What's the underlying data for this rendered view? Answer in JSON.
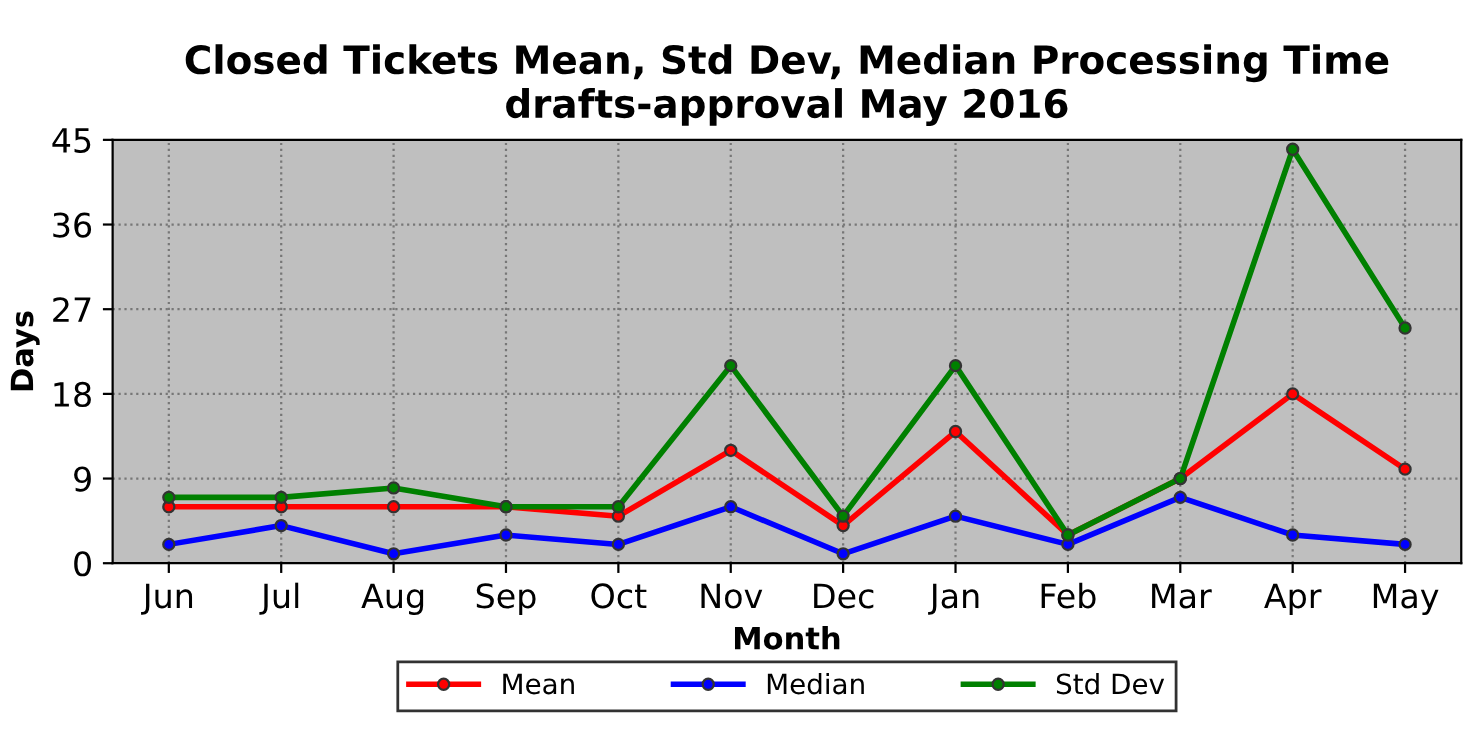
{
  "chart_data": {
    "type": "line",
    "title": "Closed Tickets Mean, Std Dev, Median Processing Time\ndrafts-approval May 2016",
    "xlabel": "Month",
    "ylabel": "Days",
    "categories": [
      "Jun",
      "Jul",
      "Aug",
      "Sep",
      "Oct",
      "Nov",
      "Dec",
      "Jan",
      "Feb",
      "Mar",
      "Apr",
      "May"
    ],
    "series": [
      {
        "name": "Mean",
        "color": "#ff0000",
        "values": [
          6,
          6,
          6,
          6,
          5,
          12,
          4,
          14,
          3,
          9,
          18,
          10
        ]
      },
      {
        "name": "Median",
        "color": "#0000ff",
        "values": [
          2,
          4,
          1,
          3,
          2,
          6,
          1,
          5,
          2,
          7,
          3,
          2
        ]
      },
      {
        "name": "Std Dev",
        "color": "#008000",
        "values": [
          7,
          7,
          8,
          6,
          6,
          21,
          5,
          21,
          3,
          9,
          44,
          25
        ]
      }
    ],
    "ylim": [
      0,
      45
    ],
    "yticks": [
      0,
      9,
      18,
      27,
      36,
      45
    ],
    "grid": true,
    "legend": "bottom",
    "marker": "circle",
    "line_style": "solid"
  }
}
